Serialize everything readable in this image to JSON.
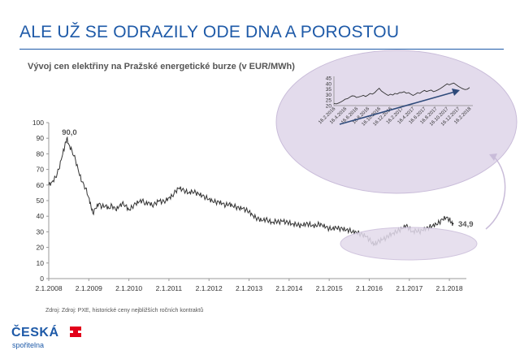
{
  "slide": {
    "title": "ALE UŽ SE ODRAZILY ODE DNA A POROSTOU",
    "source_note": "Zdroj: Zdroj: PXE, historické ceny nejbližších ročních kontraktů"
  },
  "logo": {
    "word": "ČESKÁ",
    "sub": "spořitelna",
    "mark": "ceska-sporitelna-logo"
  },
  "colors": {
    "title": "#1e5aa8",
    "line": "#333333",
    "ellipse": "#e3dbec",
    "ellipse_border": "#c9bcd9",
    "arrow": "#2e4a7a"
  },
  "chart_data": [
    {
      "type": "line",
      "title": "Vývoj cen elektřiny na Pražské energetické burze (v EUR/MWh)",
      "xlabel": "",
      "ylabel": "",
      "ylim": [
        0,
        100
      ],
      "yticks": [
        "0",
        "10",
        "20",
        "30",
        "40",
        "50",
        "60",
        "70",
        "80",
        "90",
        "100"
      ],
      "xticks": [
        "2.1.2008",
        "2.1.2009",
        "2.1.2010",
        "2.1.2011",
        "2.1.2012",
        "2.1.2013",
        "2.1.2014",
        "2.1.2015",
        "2.1.2016",
        "2.1.2017",
        "2.1.2018"
      ],
      "grid": false,
      "annotations": [
        {
          "label": "90,0",
          "year": 2008.45,
          "value": 90.0
        },
        {
          "label": "34,9",
          "year": 2018.1,
          "value": 34.9
        }
      ],
      "series": [
        {
          "values": [
            [
              2008.0,
              60
            ],
            [
              2008.08,
              62
            ],
            [
              2008.17,
              65
            ],
            [
              2008.25,
              70
            ],
            [
              2008.33,
              78
            ],
            [
              2008.4,
              85
            ],
            [
              2008.45,
              90
            ],
            [
              2008.5,
              86
            ],
            [
              2008.58,
              82
            ],
            [
              2008.67,
              76
            ],
            [
              2008.75,
              68
            ],
            [
              2008.83,
              62
            ],
            [
              2008.92,
              58
            ],
            [
              2009.0,
              52
            ],
            [
              2009.05,
              47
            ],
            [
              2009.1,
              42
            ],
            [
              2009.17,
              45
            ],
            [
              2009.25,
              48
            ],
            [
              2009.33,
              46
            ],
            [
              2009.42,
              47
            ],
            [
              2009.5,
              45
            ],
            [
              2009.58,
              47
            ],
            [
              2009.67,
              44
            ],
            [
              2009.75,
              46
            ],
            [
              2009.83,
              48
            ],
            [
              2009.92,
              47
            ],
            [
              2010.0,
              44
            ],
            [
              2010.08,
              46
            ],
            [
              2010.17,
              48
            ],
            [
              2010.25,
              49
            ],
            [
              2010.33,
              50
            ],
            [
              2010.42,
              48
            ],
            [
              2010.5,
              49
            ],
            [
              2010.58,
              47
            ],
            [
              2010.67,
              48
            ],
            [
              2010.75,
              50
            ],
            [
              2010.83,
              49
            ],
            [
              2010.92,
              50
            ],
            [
              2011.0,
              52
            ],
            [
              2011.08,
              53
            ],
            [
              2011.17,
              56
            ],
            [
              2011.25,
              58
            ],
            [
              2011.33,
              57
            ],
            [
              2011.42,
              56
            ],
            [
              2011.5,
              55
            ],
            [
              2011.58,
              56
            ],
            [
              2011.67,
              55
            ],
            [
              2011.75,
              54
            ],
            [
              2011.83,
              53
            ],
            [
              2011.92,
              52
            ],
            [
              2012.0,
              51
            ],
            [
              2012.08,
              50
            ],
            [
              2012.17,
              49
            ],
            [
              2012.25,
              49
            ],
            [
              2012.33,
              48
            ],
            [
              2012.42,
              47
            ],
            [
              2012.5,
              48
            ],
            [
              2012.58,
              47
            ],
            [
              2012.67,
              46
            ],
            [
              2012.75,
              45
            ],
            [
              2012.83,
              45
            ],
            [
              2012.92,
              44
            ],
            [
              2013.0,
              43
            ],
            [
              2013.08,
              41
            ],
            [
              2013.17,
              39
            ],
            [
              2013.25,
              38
            ],
            [
              2013.33,
              37
            ],
            [
              2013.42,
              38
            ],
            [
              2013.5,
              37
            ],
            [
              2013.58,
              36
            ],
            [
              2013.67,
              37
            ],
            [
              2013.75,
              36
            ],
            [
              2013.83,
              37
            ],
            [
              2013.92,
              36
            ],
            [
              2014.0,
              36
            ],
            [
              2014.08,
              35
            ],
            [
              2014.17,
              35
            ],
            [
              2014.25,
              34
            ],
            [
              2014.33,
              34
            ],
            [
              2014.42,
              35
            ],
            [
              2014.5,
              35
            ],
            [
              2014.58,
              34
            ],
            [
              2014.67,
              34
            ],
            [
              2014.75,
              35
            ],
            [
              2014.83,
              34
            ],
            [
              2014.92,
              33
            ],
            [
              2015.0,
              32
            ],
            [
              2015.08,
              32
            ],
            [
              2015.17,
              33
            ],
            [
              2015.25,
              32
            ],
            [
              2015.33,
              32
            ],
            [
              2015.42,
              31
            ],
            [
              2015.5,
              31
            ],
            [
              2015.58,
              30
            ],
            [
              2015.67,
              30
            ],
            [
              2015.75,
              29
            ],
            [
              2015.83,
              28
            ],
            [
              2015.92,
              27
            ],
            [
              2016.0,
              25
            ],
            [
              2016.08,
              23
            ],
            [
              2016.13,
              22
            ],
            [
              2016.17,
              23
            ],
            [
              2016.25,
              24
            ],
            [
              2016.33,
              25
            ],
            [
              2016.42,
              26
            ],
            [
              2016.5,
              28
            ],
            [
              2016.58,
              29
            ],
            [
              2016.67,
              30
            ],
            [
              2016.75,
              31
            ],
            [
              2016.83,
              32
            ],
            [
              2016.92,
              34
            ],
            [
              2017.0,
              32
            ],
            [
              2017.08,
              30
            ],
            [
              2017.17,
              31
            ],
            [
              2017.25,
              30
            ],
            [
              2017.33,
              31
            ],
            [
              2017.42,
              32
            ],
            [
              2017.5,
              33
            ],
            [
              2017.58,
              34
            ],
            [
              2017.67,
              35
            ],
            [
              2017.75,
              36
            ],
            [
              2017.83,
              38
            ],
            [
              2017.92,
              39
            ],
            [
              2018.0,
              38
            ],
            [
              2018.05,
              36
            ],
            [
              2018.1,
              34.9
            ]
          ]
        }
      ]
    },
    {
      "type": "line",
      "title": "",
      "xlabel": "",
      "ylabel": "",
      "ylim": [
        0,
        45
      ],
      "yticks": [
        "0",
        "5",
        "10",
        "15",
        "20",
        "25",
        "30",
        "35",
        "40",
        "45"
      ],
      "xticks": [
        "16.2.2016",
        "16.4.2016",
        "16.6.2016",
        "16.8.2016",
        "16.10.2016",
        "16.12.2016",
        "16.2.2017",
        "16.4.2017",
        "16.6.2017",
        "16.8.2017",
        "16.10.2017",
        "16.12.2017",
        "16.2.2018"
      ],
      "grid": false,
      "trend_arrow": true,
      "series": [
        {
          "values": [
            [
              0,
              22
            ],
            [
              0.2,
              22
            ],
            [
              0.4,
              23
            ],
            [
              0.6,
              24
            ],
            [
              0.8,
              25
            ],
            [
              1.0,
              26
            ],
            [
              1.2,
              26
            ],
            [
              1.4,
              27
            ],
            [
              1.6,
              28
            ],
            [
              1.8,
              28
            ],
            [
              2.0,
              27
            ],
            [
              2.2,
              28
            ],
            [
              2.4,
              29
            ],
            [
              2.6,
              30
            ],
            [
              2.8,
              29
            ],
            [
              3.0,
              30
            ],
            [
              3.2,
              31
            ],
            [
              3.4,
              30
            ],
            [
              3.6,
              31
            ],
            [
              3.8,
              33
            ],
            [
              4.0,
              35
            ],
            [
              4.2,
              33
            ],
            [
              4.4,
              32
            ],
            [
              4.6,
              31
            ],
            [
              4.8,
              30
            ],
            [
              5.0,
              31
            ],
            [
              5.2,
              30
            ],
            [
              5.4,
              31
            ],
            [
              5.6,
              30
            ],
            [
              5.8,
              31
            ],
            [
              6.0,
              31
            ],
            [
              6.2,
              32
            ],
            [
              6.4,
              31
            ],
            [
              6.6,
              32
            ],
            [
              6.8,
              31
            ],
            [
              7.0,
              30
            ],
            [
              7.2,
              31
            ],
            [
              7.4,
              32
            ],
            [
              7.6,
              31
            ],
            [
              7.8,
              32
            ],
            [
              8.0,
              33
            ],
            [
              8.2,
              32
            ],
            [
              8.4,
              33
            ],
            [
              8.6,
              34
            ],
            [
              8.8,
              33
            ],
            [
              9.0,
              34
            ],
            [
              9.2,
              35
            ],
            [
              9.4,
              36
            ],
            [
              9.6,
              37
            ],
            [
              9.8,
              38
            ],
            [
              10.0,
              39
            ],
            [
              10.2,
              38
            ],
            [
              10.4,
              39
            ],
            [
              10.6,
              40
            ],
            [
              10.8,
              39
            ],
            [
              11.0,
              38
            ],
            [
              11.2,
              37
            ],
            [
              11.4,
              36
            ],
            [
              11.6,
              35
            ],
            [
              11.8,
              35
            ],
            [
              12.0,
              36
            ]
          ]
        }
      ]
    }
  ]
}
